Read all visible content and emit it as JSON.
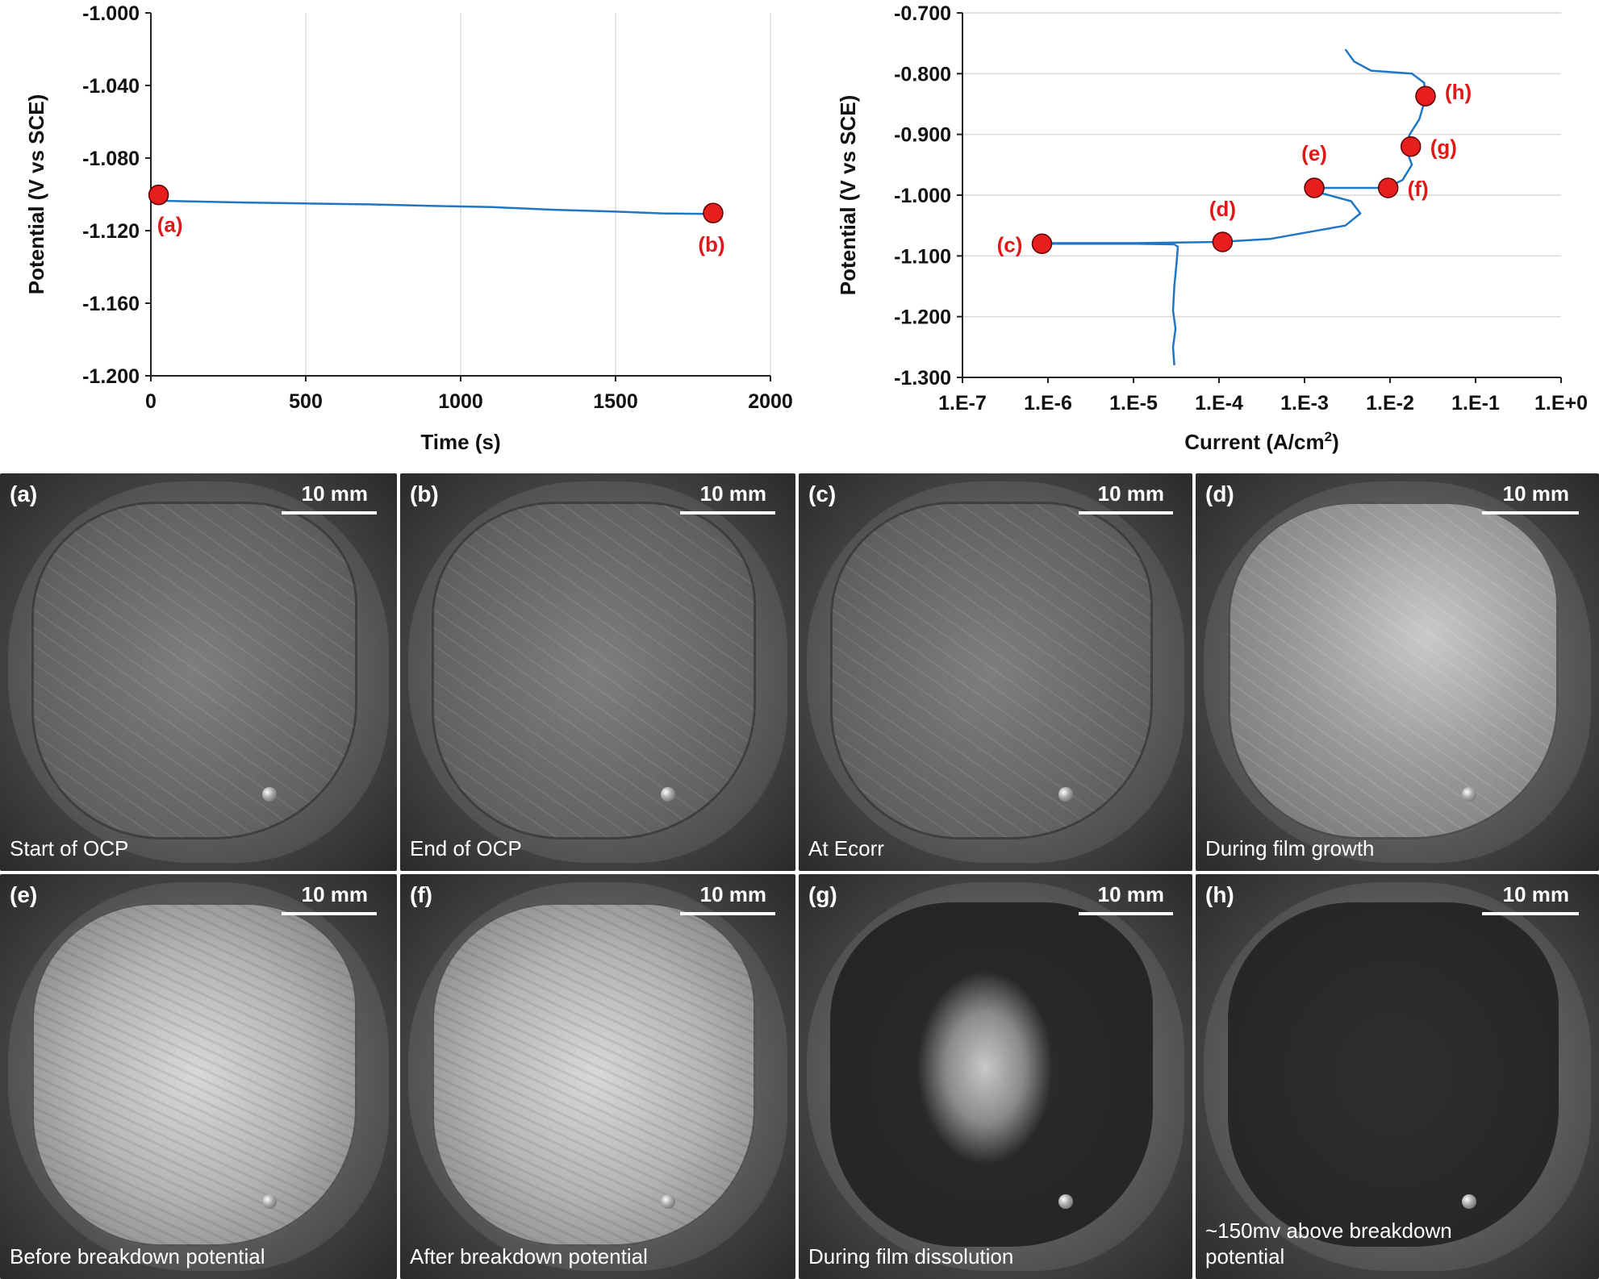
{
  "chart_data": [
    {
      "type": "line",
      "xlabel": "Time (s)",
      "ylabel": "Potential (V vs SCE)",
      "xlim": [
        0,
        2000
      ],
      "ylim": [
        -1.2,
        -1.0
      ],
      "xticks": [
        "0",
        "500",
        "1000",
        "1500",
        "2000"
      ],
      "yticks": [
        "-1.000",
        "-1.040",
        "-1.080",
        "-1.120",
        "-1.160",
        "-1.200"
      ],
      "grid": "vertical",
      "series": [
        {
          "color": "#1f77c4",
          "x": [
            25,
            100,
            300,
            500,
            700,
            900,
            1100,
            1300,
            1500,
            1650,
            1800
          ],
          "y": [
            -1.1035,
            -1.1038,
            -1.1045,
            -1.105,
            -1.1055,
            -1.1063,
            -1.107,
            -1.1085,
            -1.1095,
            -1.1105,
            -1.1108
          ]
        }
      ],
      "markers": [
        {
          "label": "(a)",
          "x": 25,
          "y": -1.1003
        },
        {
          "label": "(b)",
          "x": 1815,
          "y": -1.1103
        }
      ]
    },
    {
      "type": "line",
      "xlabel": "Current (A/cm",
      "xlabel_sup": "2",
      "xlabel_end": ")",
      "ylabel": "Potential (V vs SCE)",
      "xscale": "log",
      "xlim": [
        1e-07,
        1
      ],
      "ylim": [
        -1.3,
        -0.7
      ],
      "xticks": [
        "1.E-7",
        "1.E-6",
        "1.E-5",
        "1.E-4",
        "1.E-3",
        "1.E-2",
        "1.E-1",
        "1.E+0"
      ],
      "yticks": [
        "-0.700",
        "-0.800",
        "-0.900",
        "-1.000",
        "-1.100",
        "-1.200",
        "-1.300"
      ],
      "grid": "horizontal",
      "series": [
        {
          "color": "#1f77c4",
          "x": [
            3e-05,
            2.9e-05,
            3.1e-05,
            2.9e-05,
            3e-05,
            3.2e-05,
            3.3e-05,
            3e-05,
            1e-05,
            8e-07,
            1e-06,
            1e-05,
            0.0001,
            0.0004,
            0.0012,
            0.003,
            0.0045,
            0.0035,
            0.0016,
            0.0013,
            0.003,
            0.009,
            0.014,
            0.018,
            0.015,
            0.017,
            0.022,
            0.026,
            0.025,
            0.018,
            0.006,
            0.0038,
            0.003
          ],
          "y": [
            -1.28,
            -1.25,
            -1.22,
            -1.19,
            -1.15,
            -1.11,
            -1.085,
            -1.081,
            -1.08,
            -1.08,
            -1.079,
            -1.079,
            -1.077,
            -1.072,
            -1.06,
            -1.05,
            -1.03,
            -1.01,
            -0.997,
            -0.988,
            -0.988,
            -0.988,
            -0.975,
            -0.95,
            -0.92,
            -0.9,
            -0.875,
            -0.84,
            -0.815,
            -0.8,
            -0.795,
            -0.78,
            -0.76
          ]
        }
      ],
      "markers": [
        {
          "label": "(c)",
          "x": 8.5e-07,
          "y": -1.08
        },
        {
          "label": "(d)",
          "x": 0.00011,
          "y": -1.077
        },
        {
          "label": "(e)",
          "x": 0.0013,
          "y": -0.988
        },
        {
          "label": "(f)",
          "x": 0.0095,
          "y": -0.988
        },
        {
          "label": "(g)",
          "x": 0.0175,
          "y": -0.92
        },
        {
          "label": "(h)",
          "x": 0.026,
          "y": -0.837
        }
      ]
    }
  ],
  "colors": {
    "line": "#1f77c4",
    "marker": "#e81e1e",
    "marker_stroke": "#5a0000",
    "label": "#e01818",
    "axis": "#222222",
    "grid": "#d9d9d9"
  },
  "scale_bar_text": "10 mm",
  "panels": [
    {
      "letter": "(a)",
      "caption": "Start of OCP",
      "surface": "coarse-grey"
    },
    {
      "letter": "(b)",
      "caption": "End of OCP",
      "surface": "coarse-grey"
    },
    {
      "letter": "(c)",
      "caption": "At Ecorr",
      "surface": "coarse-grey"
    },
    {
      "letter": "(d)",
      "caption": "During film growth",
      "surface": "light-grey"
    },
    {
      "letter": "(e)",
      "caption": "Before breakdown potential",
      "surface": "bright-speckled"
    },
    {
      "letter": "(f)",
      "caption": "After breakdown potential",
      "surface": "bright-speckled"
    },
    {
      "letter": "(g)",
      "caption": "During film dissolution",
      "surface": "dark-with-bright-patches"
    },
    {
      "letter": "(h)",
      "caption": "~150mv above breakdown\npotential",
      "surface": "dark"
    }
  ]
}
